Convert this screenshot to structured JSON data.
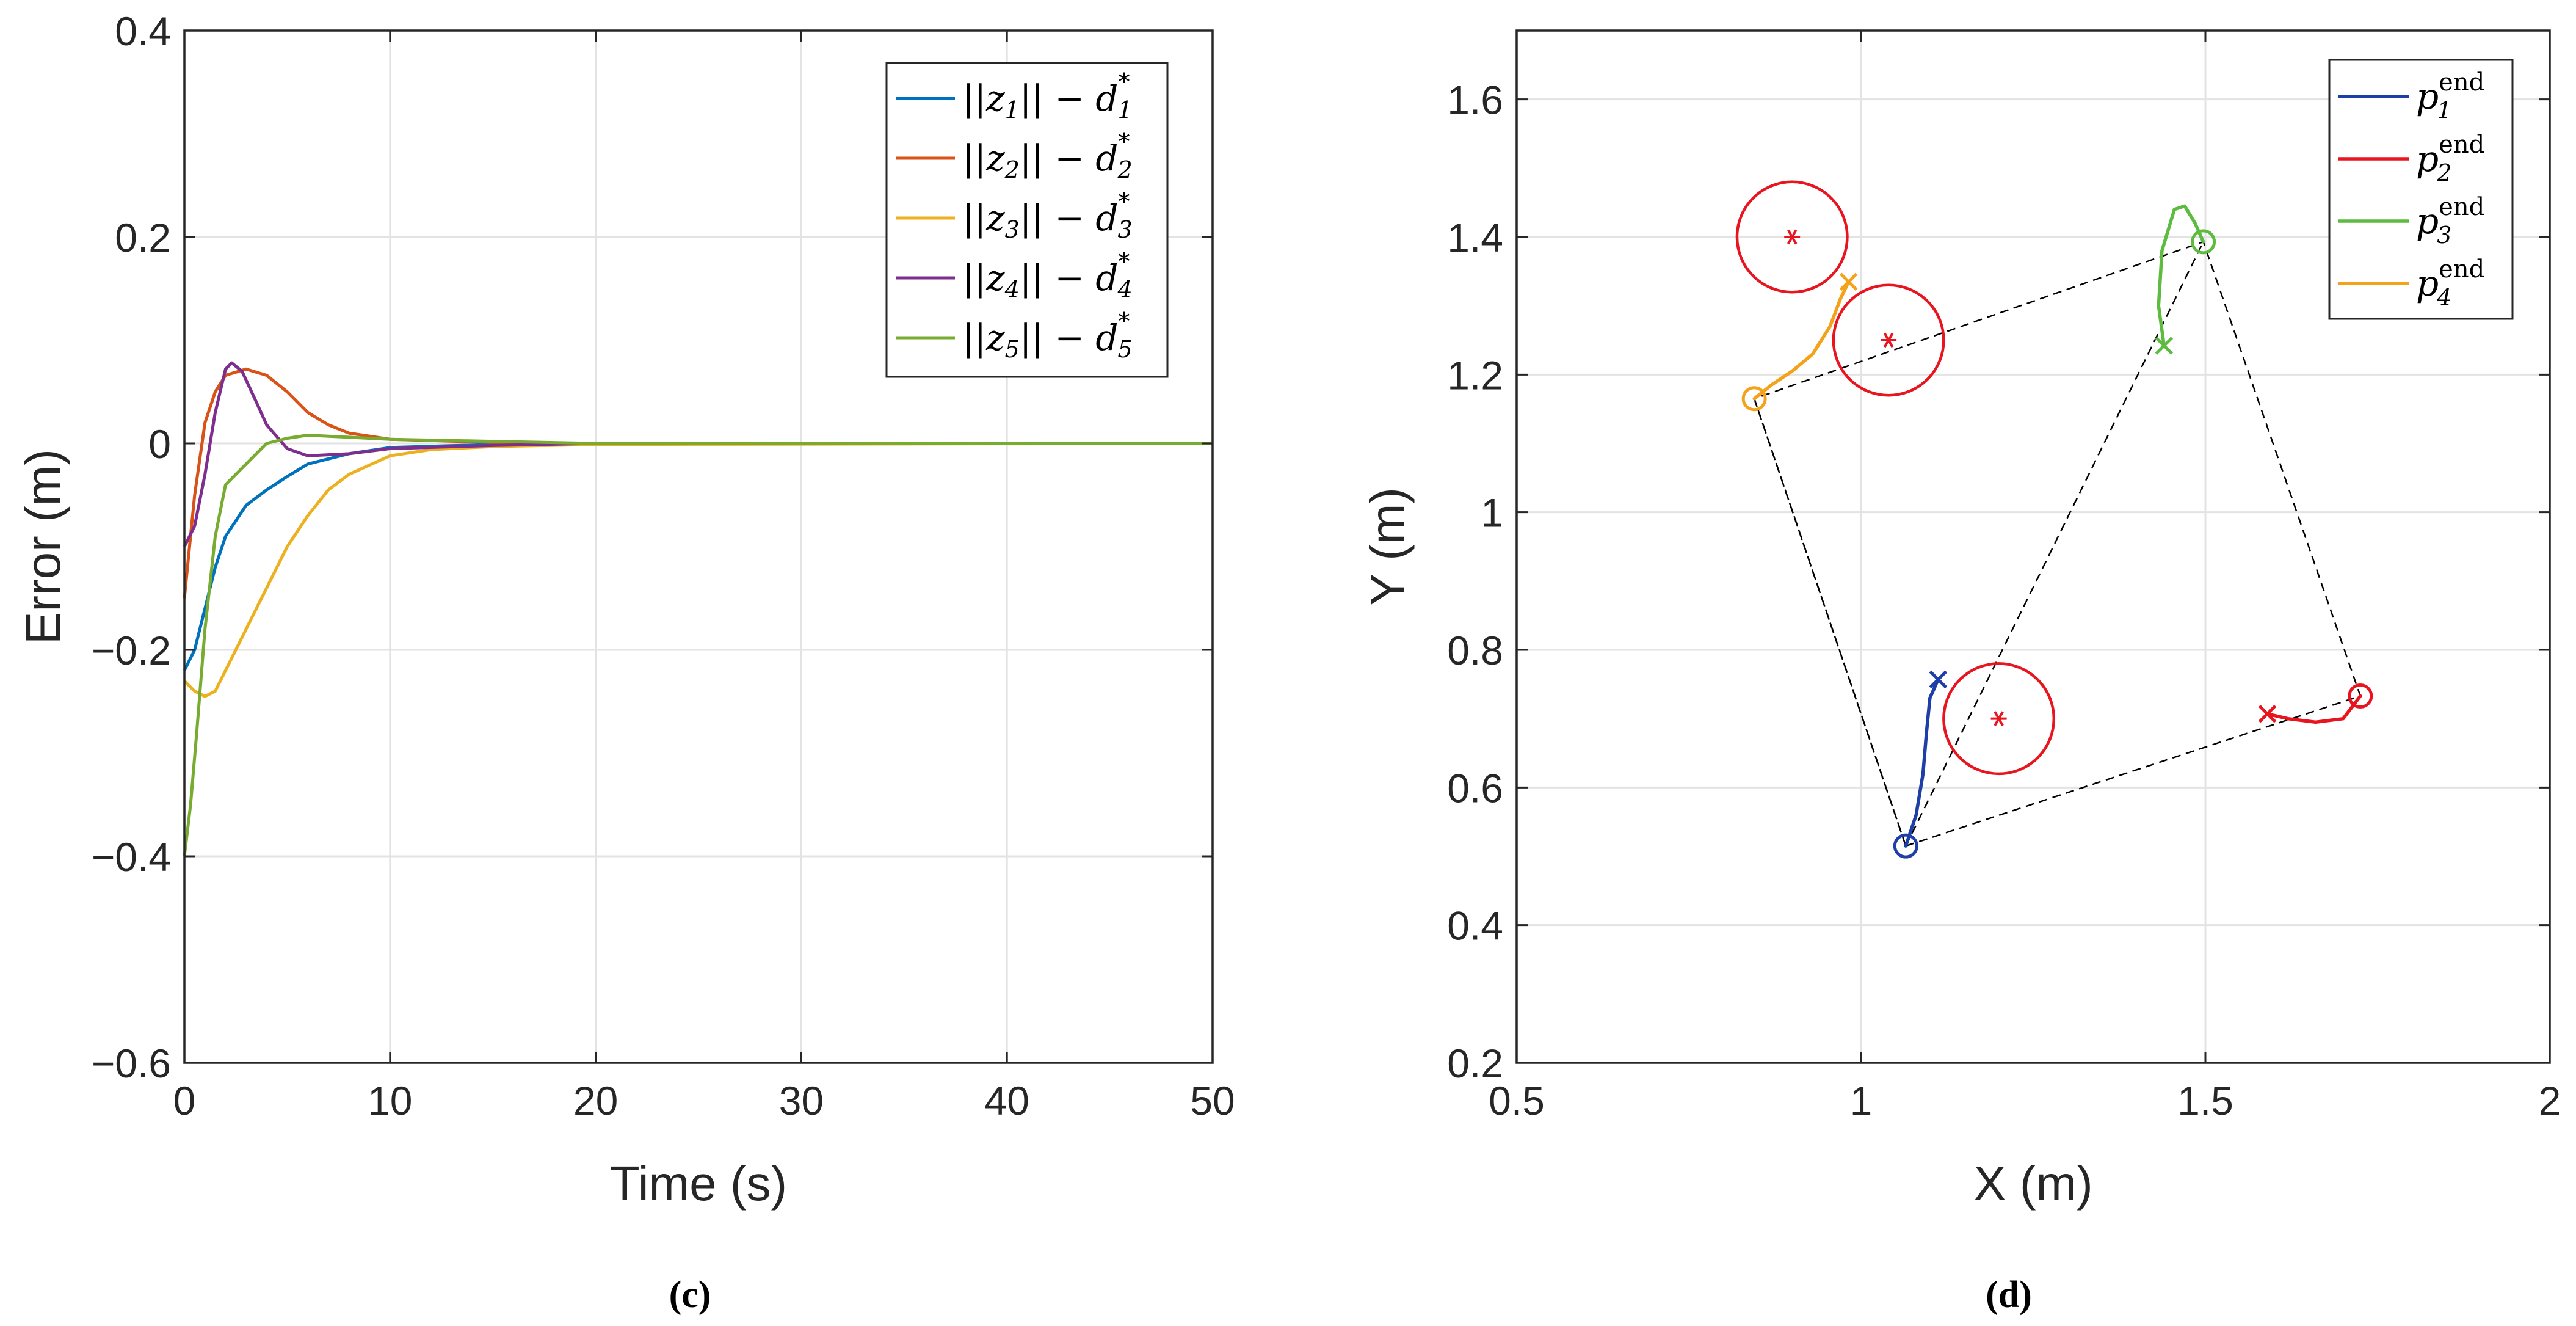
{
  "captions": [
    "(c)",
    "(d)"
  ],
  "chart_data": [
    {
      "type": "line",
      "xlabel": "Time (s)",
      "ylabel": "Error (m)",
      "xlim": [
        0,
        50
      ],
      "ylim": [
        -0.6,
        0.4
      ],
      "xticks": [
        "0",
        "10",
        "20",
        "30",
        "40",
        "50"
      ],
      "yticks": [
        "0.4",
        "0.2",
        "0",
        "−0.2",
        "−0.4",
        "−0.6"
      ],
      "grid": true,
      "legend_position": "top-right",
      "series": [
        {
          "name": "||z1|| − d1*",
          "color": "#0072BD",
          "legend": {
            "i": "1"
          },
          "points": [
            [
              0,
              -0.22
            ],
            [
              0.5,
              -0.2
            ],
            [
              1,
              -0.16
            ],
            [
              1.5,
              -0.12
            ],
            [
              2,
              -0.09
            ],
            [
              3,
              -0.06
            ],
            [
              4,
              -0.045
            ],
            [
              5,
              -0.032
            ],
            [
              6,
              -0.02
            ],
            [
              8,
              -0.01
            ],
            [
              10,
              -0.004
            ],
            [
              15,
              -0.001
            ],
            [
              20,
              0
            ],
            [
              50,
              0
            ]
          ]
        },
        {
          "name": "||z2|| − d2*",
          "color": "#D95319",
          "legend": {
            "i": "2"
          },
          "points": [
            [
              0,
              -0.15
            ],
            [
              0.5,
              -0.05
            ],
            [
              1,
              0.02
            ],
            [
              1.5,
              0.05
            ],
            [
              2,
              0.066
            ],
            [
              3,
              0.072
            ],
            [
              4,
              0.066
            ],
            [
              5,
              0.05
            ],
            [
              6,
              0.03
            ],
            [
              7,
              0.018
            ],
            [
              8,
              0.01
            ],
            [
              10,
              0.004
            ],
            [
              15,
              0.001
            ],
            [
              20,
              0
            ],
            [
              50,
              0
            ]
          ]
        },
        {
          "name": "||z3|| − d3*",
          "color": "#EDB120",
          "legend": {
            "i": "3"
          },
          "points": [
            [
              0,
              -0.23
            ],
            [
              0.5,
              -0.24
            ],
            [
              1,
              -0.245
            ],
            [
              1.5,
              -0.24
            ],
            [
              2,
              -0.22
            ],
            [
              3,
              -0.18
            ],
            [
              4,
              -0.14
            ],
            [
              5,
              -0.1
            ],
            [
              6,
              -0.07
            ],
            [
              7,
              -0.045
            ],
            [
              8,
              -0.03
            ],
            [
              10,
              -0.012
            ],
            [
              12,
              -0.006
            ],
            [
              15,
              -0.003
            ],
            [
              20,
              -0.001
            ],
            [
              50,
              0
            ]
          ]
        },
        {
          "name": "||z4|| − d4*",
          "color": "#7E2F8E",
          "legend": {
            "i": "4"
          },
          "points": [
            [
              0,
              -0.1
            ],
            [
              0.5,
              -0.08
            ],
            [
              1,
              -0.03
            ],
            [
              1.5,
              0.03
            ],
            [
              2,
              0.072
            ],
            [
              2.3,
              0.078
            ],
            [
              2.8,
              0.07
            ],
            [
              3.5,
              0.04
            ],
            [
              4,
              0.018
            ],
            [
              5,
              -0.005
            ],
            [
              6,
              -0.012
            ],
            [
              8,
              -0.01
            ],
            [
              10,
              -0.005
            ],
            [
              15,
              -0.002
            ],
            [
              20,
              0
            ],
            [
              50,
              0
            ]
          ]
        },
        {
          "name": "||z5|| − d5*",
          "color": "#77AC30",
          "legend": {
            "i": "5"
          },
          "points": [
            [
              0,
              -0.4
            ],
            [
              0.3,
              -0.35
            ],
            [
              0.6,
              -0.28
            ],
            [
              1,
              -0.18
            ],
            [
              1.5,
              -0.09
            ],
            [
              2,
              -0.04
            ],
            [
              3,
              -0.02
            ],
            [
              4,
              0
            ],
            [
              5,
              0.005
            ],
            [
              6,
              0.008
            ],
            [
              8,
              0.006
            ],
            [
              10,
              0.004
            ],
            [
              15,
              0.002
            ],
            [
              20,
              0
            ],
            [
              50,
              0
            ]
          ]
        }
      ]
    },
    {
      "type": "line",
      "xlabel": "X (m)",
      "ylabel": "Y (m)",
      "xlim": [
        0.5,
        2
      ],
      "ylim": [
        0.2,
        1.7
      ],
      "xticks": [
        [
          "0.5",
          0.5
        ],
        [
          "1",
          1
        ],
        [
          "1.5",
          1.5
        ],
        [
          "2",
          2
        ]
      ],
      "yticks": [
        [
          "1.6",
          1.6
        ],
        [
          "1.4",
          1.4
        ],
        [
          "1.2",
          1.2
        ],
        [
          "1",
          1
        ],
        [
          "0.8",
          0.8
        ],
        [
          "0.6",
          0.6
        ],
        [
          "0.4",
          0.4
        ],
        [
          "0.2",
          0.2
        ]
      ],
      "grid": true,
      "legend_position": "top-right",
      "series": [
        {
          "name": "p1 end",
          "color": "#1F3FA8",
          "legend": {
            "i": "1",
            "sup": "end"
          },
          "points": [
            [
              1.112,
              0.757
            ],
            [
              1.1,
              0.73
            ],
            [
              1.095,
              0.68
            ],
            [
              1.09,
              0.62
            ],
            [
              1.08,
              0.56
            ],
            [
              1.065,
              0.515
            ]
          ],
          "start": [
            1.112,
            0.757
          ],
          "end": [
            1.065,
            0.515
          ]
        },
        {
          "name": "p2 end",
          "color": "#E8141E",
          "legend": {
            "i": "2",
            "sup": "end"
          },
          "points": [
            [
              1.59,
              0.707
            ],
            [
              1.62,
              0.7
            ],
            [
              1.66,
              0.695
            ],
            [
              1.7,
              0.7
            ],
            [
              1.725,
              0.733
            ]
          ],
          "start": [
            1.59,
            0.707
          ],
          "end": [
            1.725,
            0.733
          ]
        },
        {
          "name": "p3 end",
          "color": "#5DBB3F",
          "legend": {
            "i": "3",
            "sup": "end"
          },
          "points": [
            [
              1.44,
              1.242
            ],
            [
              1.432,
              1.3
            ],
            [
              1.437,
              1.38
            ],
            [
              1.455,
              1.44
            ],
            [
              1.47,
              1.445
            ],
            [
              1.485,
              1.42
            ],
            [
              1.497,
              1.393
            ]
          ],
          "start": [
            1.44,
            1.242
          ],
          "end": [
            1.497,
            1.393
          ]
        },
        {
          "name": "p4 end",
          "color": "#F5A21B",
          "legend": {
            "i": "4",
            "sup": "end"
          },
          "points": [
            [
              0.982,
              1.335
            ],
            [
              0.97,
              1.31
            ],
            [
              0.955,
              1.27
            ],
            [
              0.93,
              1.23
            ],
            [
              0.9,
              1.205
            ],
            [
              0.87,
              1.185
            ],
            [
              0.845,
              1.165
            ]
          ],
          "start": [
            0.982,
            1.335
          ],
          "end": [
            0.845,
            1.165
          ]
        }
      ],
      "obstacles": [
        {
          "center": [
            0.9,
            1.4
          ],
          "radius": 0.08
        },
        {
          "center": [
            1.04,
            1.25
          ],
          "radius": 0.08
        },
        {
          "center": [
            1.2,
            0.7
          ],
          "radius": 0.08
        }
      ],
      "formation_vertices": [
        [
          1.065,
          0.515
        ],
        [
          1.725,
          0.733
        ],
        [
          1.497,
          1.393
        ],
        [
          0.845,
          1.165
        ]
      ],
      "formation_diagonals": [
        [
          [
            1.065,
            0.515
          ],
          [
            1.497,
            1.393
          ]
        ],
        [
          [
            0.845,
            1.165
          ],
          [
            1.065,
            0.515
          ]
        ]
      ]
    }
  ]
}
